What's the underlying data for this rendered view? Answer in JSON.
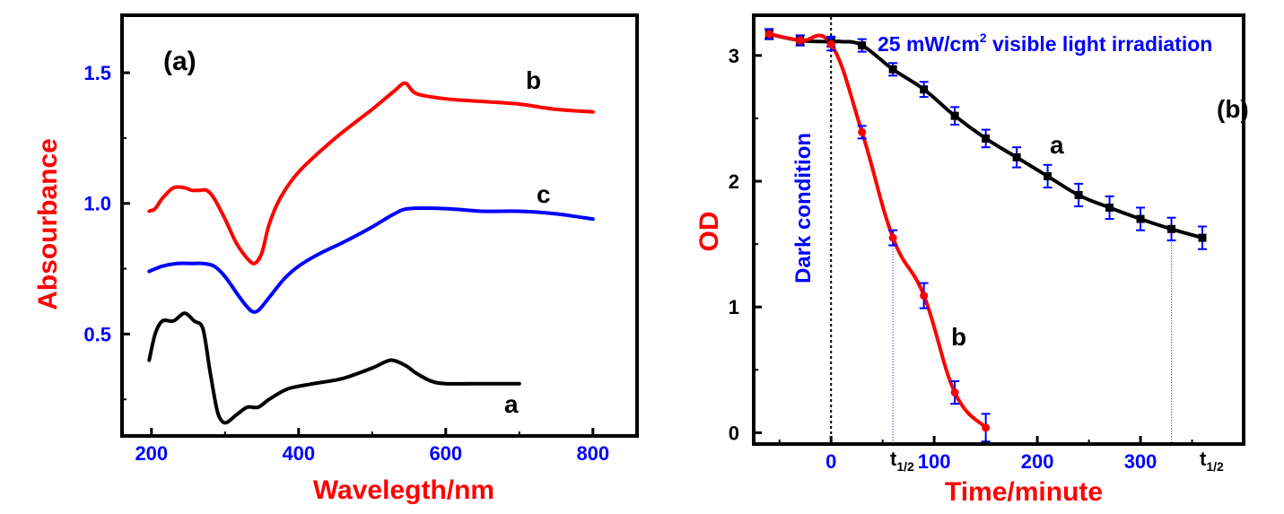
{
  "colors": {
    "red": "#ff0000",
    "blue": "#0000ff",
    "black": "#000000"
  },
  "chart_data": [
    {
      "type": "line",
      "panel_label": "(a)",
      "xlabel": "Wavelegth/nm",
      "ylabel": "Absourbance",
      "xlim": [
        160,
        860
      ],
      "ylim": [
        0.11,
        1.72
      ],
      "xticks": [
        200,
        400,
        600,
        800
      ],
      "yticks": [
        0.5,
        1.0,
        1.5
      ],
      "xtick_labels": [
        "200",
        "400",
        "600",
        "800"
      ],
      "ytick_labels": [
        "0.5",
        "1.0",
        "1.5"
      ],
      "grid": false,
      "series": [
        {
          "name": "b",
          "color": "#ff0000",
          "x": [
            197,
            205,
            215,
            230,
            245,
            255,
            265,
            275,
            285,
            300,
            315,
            330,
            340,
            350,
            360,
            375,
            400,
            450,
            500,
            530,
            545,
            560,
            600,
            650,
            700,
            750,
            800
          ],
          "y": [
            0.97,
            0.98,
            1.02,
            1.06,
            1.06,
            1.05,
            1.05,
            1.05,
            1.02,
            0.94,
            0.85,
            0.79,
            0.77,
            0.81,
            0.92,
            1.02,
            1.12,
            1.25,
            1.36,
            1.43,
            1.46,
            1.42,
            1.4,
            1.39,
            1.38,
            1.36,
            1.35
          ]
        },
        {
          "name": "c",
          "color": "#0000ff",
          "x": [
            197,
            215,
            235,
            255,
            270,
            285,
            300,
            320,
            335,
            345,
            360,
            380,
            400,
            430,
            460,
            500,
            530,
            550,
            600,
            650,
            700,
            750,
            800
          ],
          "y": [
            0.74,
            0.76,
            0.77,
            0.77,
            0.77,
            0.76,
            0.72,
            0.64,
            0.59,
            0.59,
            0.64,
            0.71,
            0.76,
            0.81,
            0.85,
            0.91,
            0.96,
            0.98,
            0.98,
            0.97,
            0.97,
            0.96,
            0.94
          ]
        },
        {
          "name": "a",
          "color": "#000000",
          "x": [
            197,
            205,
            215,
            230,
            245,
            258,
            270,
            280,
            290,
            300,
            315,
            330,
            345,
            360,
            385,
            420,
            460,
            500,
            525,
            545,
            560,
            580,
            600,
            650,
            700
          ],
          "y": [
            0.4,
            0.5,
            0.55,
            0.55,
            0.58,
            0.55,
            0.52,
            0.35,
            0.2,
            0.16,
            0.19,
            0.22,
            0.22,
            0.25,
            0.29,
            0.31,
            0.33,
            0.37,
            0.4,
            0.38,
            0.35,
            0.32,
            0.31,
            0.31,
            0.31
          ]
        }
      ]
    },
    {
      "type": "line",
      "panel_label": "(b)",
      "xlabel": "Time/minute",
      "ylabel": "OD",
      "xlim": [
        -75,
        400
      ],
      "ylim": [
        -0.09,
        3.32
      ],
      "xticks": [
        0,
        100,
        200,
        300
      ],
      "yticks": [
        0,
        1,
        2,
        3
      ],
      "xtick_labels": [
        "0",
        "100",
        "200",
        "300"
      ],
      "ytick_labels": [
        "0",
        "1",
        "2",
        "3"
      ],
      "grid": false,
      "annotations": {
        "irradiation_text": "25 mW/cm",
        "irradiation_sup": "2",
        "irradiation_rest": " visible light irradiation",
        "dark_condition": "Dark condition",
        "t_half_main": "t",
        "t_half_sub": "1/2"
      },
      "dark_line_x": 0,
      "t_half_x": [
        60,
        330
      ],
      "series": [
        {
          "name": "a",
          "color": "#000000",
          "x": [
            -60,
            -30,
            0,
            10,
            30,
            60,
            90,
            120,
            150,
            180,
            210,
            240,
            270,
            300,
            330,
            360
          ],
          "y": [
            3.17,
            3.12,
            3.11,
            3.11,
            3.08,
            2.89,
            2.73,
            2.52,
            2.34,
            2.19,
            2.04,
            1.89,
            1.79,
            1.7,
            1.62,
            1.55
          ],
          "error": [
            0.04,
            0.04,
            0.04,
            0.0,
            0.05,
            0.05,
            0.06,
            0.07,
            0.07,
            0.08,
            0.09,
            0.09,
            0.09,
            0.09,
            0.09,
            0.09
          ],
          "marker_indices": [
            0,
            1,
            2,
            4,
            5,
            6,
            7,
            8,
            9,
            10,
            11,
            12,
            13,
            14,
            15
          ]
        },
        {
          "name": "b",
          "color": "#ff0000",
          "x": [
            -60,
            -30,
            0,
            30,
            60,
            90,
            120,
            150
          ],
          "y": [
            3.17,
            3.12,
            3.09,
            2.39,
            1.55,
            1.09,
            0.32,
            0.04
          ],
          "error": [
            0.04,
            0.04,
            0.05,
            0.05,
            0.06,
            0.1,
            0.09,
            0.11
          ],
          "marker_indices": [
            0,
            1,
            2,
            3,
            4,
            5,
            6,
            7
          ]
        }
      ]
    }
  ]
}
